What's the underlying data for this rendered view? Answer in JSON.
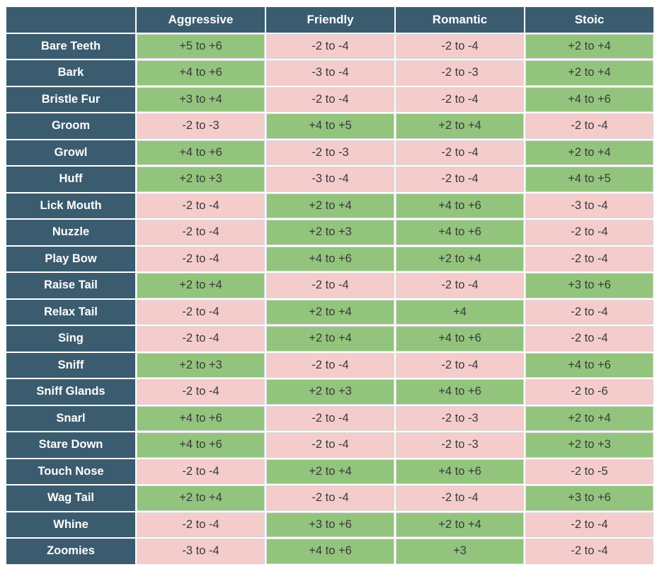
{
  "columns": [
    "Aggressive",
    "Friendly",
    "Romantic",
    "Stoic"
  ],
  "colors": {
    "header_bg": "#3b5c6f",
    "positive_bg": "#93c47d",
    "negative_bg": "#f4cccc"
  },
  "rows": [
    {
      "label": "Bare Teeth",
      "cells": [
        {
          "text": "+5 to +6",
          "tone": "pos"
        },
        {
          "text": "-2 to -4",
          "tone": "neg"
        },
        {
          "text": "-2 to -4",
          "tone": "neg"
        },
        {
          "text": "+2 to +4",
          "tone": "pos"
        }
      ]
    },
    {
      "label": "Bark",
      "cells": [
        {
          "text": "+4 to +6",
          "tone": "pos"
        },
        {
          "text": "-3 to -4",
          "tone": "neg"
        },
        {
          "text": "-2 to -3",
          "tone": "neg"
        },
        {
          "text": "+2 to +4",
          "tone": "pos"
        }
      ]
    },
    {
      "label": "Bristle Fur",
      "cells": [
        {
          "text": "+3 to +4",
          "tone": "pos"
        },
        {
          "text": "-2 to -4",
          "tone": "neg"
        },
        {
          "text": "-2 to -4",
          "tone": "neg"
        },
        {
          "text": "+4 to +6",
          "tone": "pos"
        }
      ]
    },
    {
      "label": "Groom",
      "cells": [
        {
          "text": "-2 to -3",
          "tone": "neg"
        },
        {
          "text": "+4 to +5",
          "tone": "pos"
        },
        {
          "text": "+2 to +4",
          "tone": "pos"
        },
        {
          "text": "-2 to -4",
          "tone": "neg"
        }
      ]
    },
    {
      "label": "Growl",
      "cells": [
        {
          "text": "+4 to +6",
          "tone": "pos"
        },
        {
          "text": "-2 to -3",
          "tone": "neg"
        },
        {
          "text": "-2 to -4",
          "tone": "neg"
        },
        {
          "text": "+2 to +4",
          "tone": "pos"
        }
      ]
    },
    {
      "label": "Huff",
      "cells": [
        {
          "text": "+2 to +3",
          "tone": "pos"
        },
        {
          "text": "-3 to -4",
          "tone": "neg"
        },
        {
          "text": "-2 to -4",
          "tone": "neg"
        },
        {
          "text": "+4 to +5",
          "tone": "pos"
        }
      ]
    },
    {
      "label": "Lick Mouth",
      "cells": [
        {
          "text": "-2 to -4",
          "tone": "neg"
        },
        {
          "text": "+2 to +4",
          "tone": "pos"
        },
        {
          "text": "+4 to +6",
          "tone": "pos"
        },
        {
          "text": "-3 to -4",
          "tone": "neg"
        }
      ]
    },
    {
      "label": "Nuzzle",
      "cells": [
        {
          "text": "-2 to -4",
          "tone": "neg"
        },
        {
          "text": "+2 to +3",
          "tone": "pos"
        },
        {
          "text": "+4 to +6",
          "tone": "pos"
        },
        {
          "text": "-2 to -4",
          "tone": "neg"
        }
      ]
    },
    {
      "label": "Play Bow",
      "cells": [
        {
          "text": "-2 to -4",
          "tone": "neg"
        },
        {
          "text": "+4 to +6",
          "tone": "pos"
        },
        {
          "text": "+2 to +4",
          "tone": "pos"
        },
        {
          "text": "-2 to -4",
          "tone": "neg"
        }
      ]
    },
    {
      "label": "Raise Tail",
      "cells": [
        {
          "text": "+2 to +4",
          "tone": "pos"
        },
        {
          "text": "-2 to -4",
          "tone": "neg"
        },
        {
          "text": "-2 to -4",
          "tone": "neg"
        },
        {
          "text": "+3 to +6",
          "tone": "pos"
        }
      ]
    },
    {
      "label": "Relax Tail",
      "cells": [
        {
          "text": "-2 to -4",
          "tone": "neg"
        },
        {
          "text": "+2 to +4",
          "tone": "pos"
        },
        {
          "text": "+4",
          "tone": "pos"
        },
        {
          "text": "-2 to -4",
          "tone": "neg"
        }
      ]
    },
    {
      "label": "Sing",
      "cells": [
        {
          "text": "-2 to -4",
          "tone": "neg"
        },
        {
          "text": "+2 to +4",
          "tone": "pos"
        },
        {
          "text": "+4 to +6",
          "tone": "pos"
        },
        {
          "text": "-2 to -4",
          "tone": "neg"
        }
      ]
    },
    {
      "label": "Sniff",
      "cells": [
        {
          "text": "+2 to +3",
          "tone": "pos"
        },
        {
          "text": "-2 to -4",
          "tone": "neg"
        },
        {
          "text": "-2 to -4",
          "tone": "neg"
        },
        {
          "text": "+4 to +6",
          "tone": "pos"
        }
      ]
    },
    {
      "label": "Sniff Glands",
      "cells": [
        {
          "text": "-2 to -4",
          "tone": "neg"
        },
        {
          "text": "+2 to +3",
          "tone": "pos"
        },
        {
          "text": "+4 to +6",
          "tone": "pos"
        },
        {
          "text": "-2 to -6",
          "tone": "neg"
        }
      ]
    },
    {
      "label": "Snarl",
      "cells": [
        {
          "text": "+4 to +6",
          "tone": "pos"
        },
        {
          "text": "-2 to -4",
          "tone": "neg"
        },
        {
          "text": "-2 to -3",
          "tone": "neg"
        },
        {
          "text": "+2 to +4",
          "tone": "pos"
        }
      ]
    },
    {
      "label": "Stare Down",
      "cells": [
        {
          "text": "+4 to +6",
          "tone": "pos"
        },
        {
          "text": "-2 to -4",
          "tone": "neg"
        },
        {
          "text": "-2 to -3",
          "tone": "neg"
        },
        {
          "text": "+2 to +3",
          "tone": "pos"
        }
      ]
    },
    {
      "label": "Touch Nose",
      "cells": [
        {
          "text": "-2 to -4",
          "tone": "neg"
        },
        {
          "text": "+2 to +4",
          "tone": "pos"
        },
        {
          "text": "+4 to +6",
          "tone": "pos"
        },
        {
          "text": "-2 to -5",
          "tone": "neg"
        }
      ]
    },
    {
      "label": "Wag Tail",
      "cells": [
        {
          "text": "+2 to +4",
          "tone": "pos"
        },
        {
          "text": "-2 to -4",
          "tone": "neg"
        },
        {
          "text": "-2 to -4",
          "tone": "neg"
        },
        {
          "text": "+3 to +6",
          "tone": "pos"
        }
      ]
    },
    {
      "label": "Whine",
      "cells": [
        {
          "text": "-2 to -4",
          "tone": "neg"
        },
        {
          "text": "+3 to +6",
          "tone": "pos"
        },
        {
          "text": "+2 to +4",
          "tone": "pos"
        },
        {
          "text": "-2 to -4",
          "tone": "neg"
        }
      ]
    },
    {
      "label": "Zoomies",
      "cells": [
        {
          "text": "-3 to -4",
          "tone": "neg"
        },
        {
          "text": "+4 to +6",
          "tone": "pos"
        },
        {
          "text": "+3",
          "tone": "pos"
        },
        {
          "text": "-2 to -4",
          "tone": "neg"
        }
      ]
    }
  ]
}
